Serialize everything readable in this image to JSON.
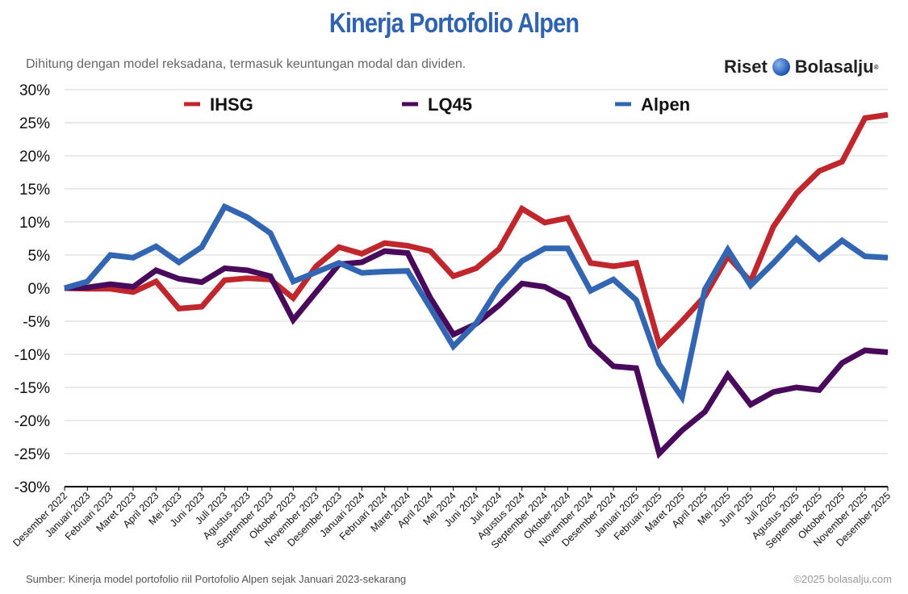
{
  "chart_data": {
    "type": "line",
    "title": "Kinerja Portofolio Alpen",
    "subtitle": "Dihitung dengan model reksadana, termasuk keuntungan modal dan dividen.",
    "source": "Sumber: Kinerja model portofolio riil Portofolio Alpen sejak Januari 2023-sekarang",
    "copyright": "©2025 bolasalju.com",
    "logo": {
      "text1": "Riset",
      "text2": "Bolasalju",
      "mark": "®"
    },
    "ylim": [
      -30,
      30
    ],
    "yticks": [
      30,
      25,
      20,
      15,
      10,
      5,
      0,
      -5,
      -10,
      -15,
      -20,
      -25,
      -30
    ],
    "ytick_labels": [
      "30%",
      "25%",
      "20%",
      "15%",
      "10%",
      "5%",
      "0%",
      "-5%",
      "-10%",
      "-15%",
      "-20%",
      "-25%",
      "-30%"
    ],
    "grid": true,
    "legend_position": "top",
    "categories": [
      "Desember 2022",
      "Januari 2023",
      "Februari 2023",
      "Maret 2023",
      "April 2023",
      "Mei 2023",
      "Juni 2023",
      "Juli 2023",
      "Agustus 2023",
      "September 2023",
      "Oktober 2023",
      "November 2023",
      "Desember 2023",
      "Januari 2024",
      "Februari 2024",
      "Maret 2024",
      "April 2024",
      "Mei 2024",
      "Juni 2024",
      "Juli 2024",
      "Agustus 2024",
      "September 2024",
      "Oktober 2024",
      "November 2024",
      "Desember 2024",
      "Januari 2025",
      "Februari 2025",
      "Maret 2025",
      "April 2025",
      "Mei 2025",
      "Juni 2025",
      "Juli 2025",
      "Agustus 2025",
      "September 2025",
      "Oktober 2025",
      "November 2025",
      "Desember 2025"
    ],
    "series": [
      {
        "name": "IHSG",
        "color": "#c0272d",
        "values": [
          0,
          -0.1,
          -0.1,
          -0.6,
          1.0,
          -3.1,
          -2.8,
          1.2,
          1.5,
          1.3,
          -1.5,
          3.3,
          6.2,
          5.2,
          6.8,
          6.4,
          5.6,
          1.8,
          3.0,
          5.9,
          12.0,
          9.9,
          10.6,
          3.8,
          3.3,
          3.8,
          -8.5,
          -5.0,
          -1.2,
          4.8,
          1.0,
          9.3,
          14.3,
          17.7,
          19.1,
          25.7,
          26.2
        ]
      },
      {
        "name": "LQ45",
        "color": "#4a0a5c",
        "values": [
          0,
          0.1,
          0.6,
          0.2,
          2.7,
          1.4,
          0.9,
          3.0,
          2.7,
          1.8,
          -4.8,
          -0.6,
          3.6,
          3.9,
          5.6,
          5.3,
          -1.5,
          -7.0,
          -5.4,
          -2.6,
          0.7,
          0.2,
          -1.6,
          -8.6,
          -11.8,
          -12.1,
          -25.0,
          -21.5,
          -18.7,
          -13.1,
          -17.6,
          -15.7,
          -15.0,
          -15.4,
          -11.3,
          -9.4,
          -9.7
        ]
      },
      {
        "name": "Alpen",
        "color": "#3366b2",
        "values": [
          0,
          1.0,
          5.0,
          4.6,
          6.3,
          3.9,
          6.2,
          12.3,
          10.7,
          8.3,
          1.0,
          2.4,
          3.8,
          2.3,
          2.5,
          2.6,
          -3.0,
          -8.8,
          -5.3,
          0.2,
          4.1,
          6.0,
          6.0,
          -0.4,
          1.3,
          -1.8,
          -11.5,
          -16.5,
          -0.2,
          5.8,
          0.4,
          3.8,
          7.5,
          4.4,
          7.2,
          4.8,
          4.6
        ]
      }
    ]
  }
}
